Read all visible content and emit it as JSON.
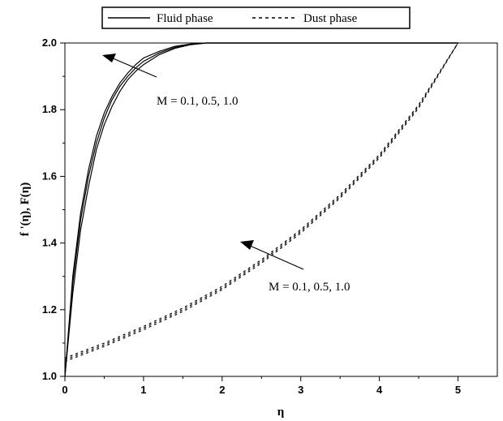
{
  "chart_data": {
    "type": "line",
    "title": "",
    "xlabel": "η",
    "ylabel": "f '(η), F(η)",
    "xlim": [
      0,
      5.5
    ],
    "ylim": [
      1.0,
      2.0
    ],
    "xticks": [
      "0",
      "1",
      "2",
      "3",
      "4",
      "5"
    ],
    "yticks": [
      "1.0",
      "1.2",
      "1.4",
      "1.6",
      "1.8",
      "2.0"
    ],
    "grid": false,
    "legend_position": "top",
    "legend": [
      {
        "label": "Fluid phase",
        "style": "solid"
      },
      {
        "label": "Dust phase",
        "style": "dashed"
      }
    ],
    "annotations": [
      {
        "text": "M = 0.1, 0.5, 1.0",
        "target": "Fluid phase"
      },
      {
        "text": "M = 0.1, 0.5, 1.0",
        "target": "Dust phase"
      }
    ],
    "series": [
      {
        "group": "Fluid phase",
        "style": "solid",
        "x": [
          0,
          0.1,
          0.2,
          0.3,
          0.4,
          0.5,
          0.6,
          0.7,
          0.8,
          0.9,
          1.0,
          1.2,
          1.4,
          1.6,
          1.8,
          2.0,
          5.0
        ],
        "y": [
          1.0,
          1.3,
          1.49,
          1.62,
          1.72,
          1.79,
          1.84,
          1.88,
          1.91,
          1.935,
          1.955,
          1.975,
          1.99,
          1.997,
          2.0,
          2.0,
          2.0
        ]
      },
      {
        "group": "Fluid phase",
        "style": "solid",
        "x": [
          0,
          0.1,
          0.2,
          0.3,
          0.4,
          0.5,
          0.6,
          0.7,
          0.8,
          0.9,
          1.0,
          1.2,
          1.4,
          1.6,
          1.8,
          2.0,
          5.0
        ],
        "y": [
          1.0,
          1.28,
          1.47,
          1.6,
          1.7,
          1.775,
          1.83,
          1.87,
          1.9,
          1.925,
          1.945,
          1.97,
          1.987,
          1.996,
          2.0,
          2.0,
          2.0
        ]
      },
      {
        "group": "Fluid phase",
        "style": "solid",
        "x": [
          0,
          0.1,
          0.2,
          0.3,
          0.4,
          0.5,
          0.6,
          0.7,
          0.8,
          0.9,
          1.0,
          1.2,
          1.4,
          1.6,
          1.8,
          2.0,
          5.0
        ],
        "y": [
          1.0,
          1.25,
          1.44,
          1.57,
          1.68,
          1.755,
          1.81,
          1.855,
          1.89,
          1.915,
          1.935,
          1.965,
          1.984,
          1.995,
          2.0,
          2.0,
          2.0
        ]
      },
      {
        "group": "Dust phase",
        "style": "dashed",
        "x": [
          0,
          0.5,
          1.0,
          1.5,
          2.0,
          2.5,
          3.0,
          3.5,
          4.0,
          4.5,
          5.0
        ],
        "y": [
          1.055,
          1.1,
          1.15,
          1.205,
          1.27,
          1.35,
          1.44,
          1.545,
          1.665,
          1.815,
          2.0
        ]
      },
      {
        "group": "Dust phase",
        "style": "dashed",
        "x": [
          0,
          0.5,
          1.0,
          1.5,
          2.0,
          2.5,
          3.0,
          3.5,
          4.0,
          4.5,
          5.0
        ],
        "y": [
          1.05,
          1.095,
          1.145,
          1.2,
          1.265,
          1.345,
          1.435,
          1.54,
          1.66,
          1.81,
          2.0
        ]
      },
      {
        "group": "Dust phase",
        "style": "dashed",
        "x": [
          0,
          0.5,
          1.0,
          1.5,
          2.0,
          2.5,
          3.0,
          3.5,
          4.0,
          4.5,
          5.0
        ],
        "y": [
          1.045,
          1.09,
          1.14,
          1.195,
          1.26,
          1.34,
          1.43,
          1.535,
          1.655,
          1.805,
          2.0
        ]
      }
    ]
  }
}
